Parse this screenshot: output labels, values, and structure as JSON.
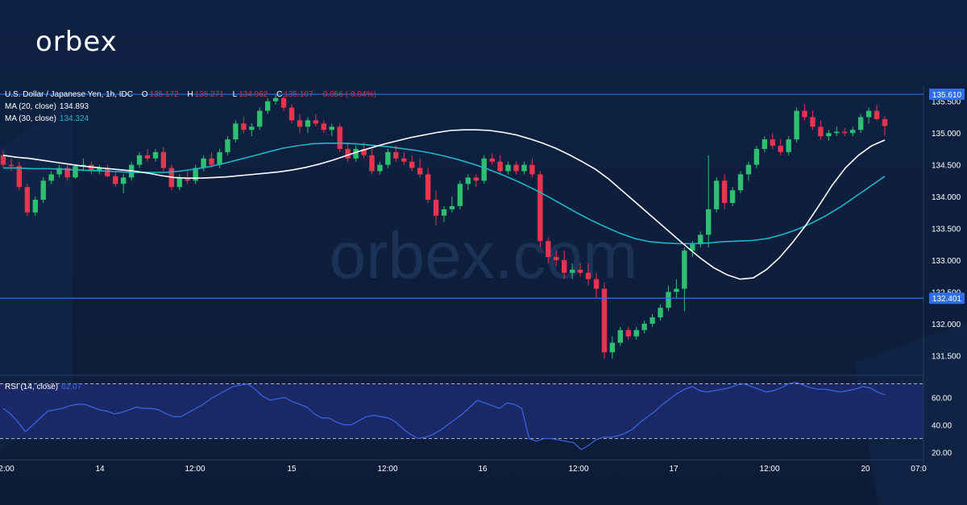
{
  "brand": "orbex",
  "watermark": "orbex.com",
  "colors": {
    "up": "#2fbf71",
    "down": "#e8344e",
    "ma20": "#ffffff",
    "ma30": "#1fb5c9",
    "level": "#2f6ef0",
    "rsi": "#3a66e6",
    "rsi_band": "#1d2a6e",
    "bg": "#0e1f3d"
  },
  "header": {
    "title": "U.S. Dollar / Japanese Yen, 1h, IDC",
    "o_label": "O",
    "o_value": "135.172",
    "h_label": "H",
    "h_value": "135.271",
    "l_label": "L",
    "l_value": "134.962",
    "c_label": "C",
    "c_value": "135.107",
    "change": "-0.056 (-0.04%)",
    "ma20_label": "MA (20, close)",
    "ma20_value": "134.893",
    "ma30_label": "MA (30, close)",
    "ma30_value": "134.324",
    "rsi_label": "RSI (14, close)",
    "rsi_value": "62.07"
  },
  "chart_data": [
    {
      "type": "candlestick",
      "currency": "JPY",
      "ylim": [
        131.2,
        135.75
      ],
      "y_ticks": [
        "135.500",
        "135.000",
        "134.500",
        "134.000",
        "133.500",
        "133.000",
        "132.500",
        "132.000",
        "131.500"
      ],
      "level_labels": [
        "135.610",
        "132.401"
      ],
      "levels": [
        135.61,
        132.401
      ],
      "x_ticks": [
        "2:00",
        "14",
        "12:00",
        "15",
        "12:00",
        "16",
        "12:00",
        "17",
        "12:00",
        "20",
        "07:0"
      ],
      "candles": [
        [
          134.65,
          134.72,
          134.45,
          134.5
        ],
        [
          134.5,
          134.6,
          134.4,
          134.48
        ],
        [
          134.48,
          134.55,
          134.1,
          134.15
        ],
        [
          134.15,
          134.2,
          133.7,
          133.75
        ],
        [
          133.75,
          134.0,
          133.7,
          133.95
        ],
        [
          133.95,
          134.3,
          133.9,
          134.25
        ],
        [
          134.25,
          134.4,
          134.2,
          134.35
        ],
        [
          134.35,
          134.5,
          134.3,
          134.45
        ],
        [
          134.45,
          134.5,
          134.25,
          134.3
        ],
        [
          134.3,
          134.5,
          134.28,
          134.48
        ],
        [
          134.48,
          134.6,
          134.4,
          134.5
        ],
        [
          134.5,
          134.55,
          134.35,
          134.4
        ],
        [
          134.4,
          134.5,
          134.35,
          134.45
        ],
        [
          134.45,
          134.5,
          134.3,
          134.32
        ],
        [
          134.32,
          134.4,
          134.15,
          134.2
        ],
        [
          134.2,
          134.35,
          134.05,
          134.3
        ],
        [
          134.3,
          134.55,
          134.25,
          134.5
        ],
        [
          134.5,
          134.7,
          134.45,
          134.65
        ],
        [
          134.65,
          134.75,
          134.55,
          134.6
        ],
        [
          134.6,
          134.75,
          134.55,
          134.7
        ],
        [
          134.7,
          134.78,
          134.4,
          134.45
        ],
        [
          134.45,
          134.5,
          134.1,
          134.15
        ],
        [
          134.15,
          134.35,
          134.1,
          134.3
        ],
        [
          134.3,
          134.4,
          134.2,
          134.25
        ],
        [
          134.25,
          134.5,
          134.2,
          134.45
        ],
        [
          134.45,
          134.65,
          134.4,
          134.6
        ],
        [
          134.6,
          134.7,
          134.45,
          134.5
        ],
        [
          134.5,
          134.75,
          134.45,
          134.7
        ],
        [
          134.7,
          134.95,
          134.65,
          134.9
        ],
        [
          134.9,
          135.2,
          134.85,
          135.15
        ],
        [
          135.15,
          135.25,
          135.0,
          135.05
        ],
        [
          135.05,
          135.15,
          134.95,
          135.1
        ],
        [
          135.1,
          135.4,
          135.05,
          135.35
        ],
        [
          135.35,
          135.55,
          135.3,
          135.5
        ],
        [
          135.5,
          135.6,
          135.45,
          135.55
        ],
        [
          135.55,
          135.58,
          135.35,
          135.4
        ],
        [
          135.4,
          135.45,
          135.15,
          135.2
        ],
        [
          135.2,
          135.3,
          135.0,
          135.1
        ],
        [
          135.1,
          135.25,
          135.0,
          135.2
        ],
        [
          135.2,
          135.3,
          135.1,
          135.15
        ],
        [
          135.15,
          135.2,
          135.0,
          135.05
        ],
        [
          135.05,
          135.15,
          134.95,
          135.1
        ],
        [
          135.1,
          135.15,
          134.7,
          134.75
        ],
        [
          134.75,
          134.85,
          134.55,
          134.6
        ],
        [
          134.6,
          134.8,
          134.55,
          134.75
        ],
        [
          134.75,
          134.85,
          134.6,
          134.65
        ],
        [
          134.65,
          134.75,
          134.35,
          134.4
        ],
        [
          134.4,
          134.55,
          134.35,
          134.5
        ],
        [
          134.5,
          134.75,
          134.45,
          134.7
        ],
        [
          134.7,
          134.8,
          134.55,
          134.6
        ],
        [
          134.6,
          134.7,
          134.5,
          134.55
        ],
        [
          134.55,
          134.65,
          134.4,
          134.45
        ],
        [
          134.45,
          134.6,
          134.3,
          134.35
        ],
        [
          134.35,
          134.45,
          133.9,
          133.95
        ],
        [
          133.95,
          134.1,
          133.55,
          133.7
        ],
        [
          133.7,
          133.85,
          133.6,
          133.8
        ],
        [
          133.8,
          134.0,
          133.75,
          133.85
        ],
        [
          133.85,
          134.25,
          133.8,
          134.2
        ],
        [
          134.2,
          134.35,
          134.1,
          134.3
        ],
        [
          134.3,
          134.35,
          134.15,
          134.25
        ],
        [
          134.25,
          134.65,
          134.2,
          134.6
        ],
        [
          134.6,
          134.68,
          134.5,
          134.55
        ],
        [
          134.55,
          134.65,
          134.35,
          134.4
        ],
        [
          134.4,
          134.55,
          134.35,
          134.5
        ],
        [
          134.5,
          134.55,
          134.35,
          134.4
        ],
        [
          134.4,
          134.55,
          134.35,
          134.5
        ],
        [
          134.5,
          134.6,
          134.3,
          134.35
        ],
        [
          134.35,
          134.4,
          133.2,
          133.3
        ],
        [
          133.3,
          133.35,
          132.95,
          133.05
        ],
        [
          133.05,
          133.15,
          132.9,
          133.0
        ],
        [
          133.0,
          133.15,
          132.7,
          132.8
        ],
        [
          132.8,
          132.95,
          132.7,
          132.85
        ],
        [
          132.85,
          132.95,
          132.75,
          132.8
        ],
        [
          132.8,
          132.95,
          132.6,
          132.7
        ],
        [
          132.7,
          132.8,
          132.4,
          132.55
        ],
        [
          132.55,
          132.65,
          131.45,
          131.55
        ],
        [
          131.55,
          131.8,
          131.45,
          131.7
        ],
        [
          131.7,
          131.95,
          131.65,
          131.9
        ],
        [
          131.9,
          131.95,
          131.75,
          131.8
        ],
        [
          131.8,
          131.95,
          131.75,
          131.9
        ],
        [
          131.9,
          132.05,
          131.85,
          132.0
        ],
        [
          132.0,
          132.15,
          131.95,
          132.1
        ],
        [
          132.1,
          132.3,
          132.05,
          132.25
        ],
        [
          132.25,
          132.6,
          132.2,
          132.5
        ],
        [
          132.5,
          132.7,
          132.4,
          132.55
        ],
        [
          132.55,
          133.2,
          132.2,
          133.15
        ],
        [
          133.15,
          133.3,
          133.05,
          133.25
        ],
        [
          133.25,
          133.45,
          133.2,
          133.4
        ],
        [
          133.4,
          134.65,
          133.2,
          133.8
        ],
        [
          133.8,
          134.3,
          133.75,
          134.25
        ],
        [
          134.25,
          134.35,
          133.8,
          133.9
        ],
        [
          133.9,
          134.15,
          133.85,
          134.1
        ],
        [
          134.1,
          134.4,
          134.05,
          134.35
        ],
        [
          134.35,
          134.55,
          134.25,
          134.5
        ],
        [
          134.5,
          134.8,
          134.45,
          134.75
        ],
        [
          134.75,
          134.95,
          134.7,
          134.9
        ],
        [
          134.9,
          135.0,
          134.75,
          134.8
        ],
        [
          134.8,
          134.9,
          134.65,
          134.7
        ],
        [
          134.7,
          134.95,
          134.65,
          134.9
        ],
        [
          134.9,
          135.4,
          134.85,
          135.35
        ],
        [
          135.35,
          135.45,
          135.2,
          135.25
        ],
        [
          135.25,
          135.35,
          135.05,
          135.1
        ],
        [
          135.1,
          135.2,
          134.9,
          134.95
        ],
        [
          134.95,
          135.05,
          134.88,
          135.0
        ],
        [
          135.0,
          135.1,
          134.95,
          135.02
        ],
        [
          135.02,
          135.08,
          134.95,
          135.0
        ],
        [
          135.0,
          135.1,
          134.95,
          135.05
        ],
        [
          135.05,
          135.3,
          135.0,
          135.25
        ],
        [
          135.25,
          135.4,
          135.15,
          135.35
        ],
        [
          135.35,
          135.45,
          135.2,
          135.22
        ],
        [
          135.22,
          135.27,
          134.96,
          135.11
        ]
      ],
      "ma20": [
        134.65,
        134.62,
        134.6,
        134.57,
        134.54,
        134.51,
        134.48,
        134.46,
        134.44,
        134.42,
        134.4,
        134.37,
        134.33,
        134.3,
        134.29,
        134.29,
        134.3,
        134.31,
        134.33,
        134.35,
        134.37,
        134.39,
        134.42,
        134.46,
        134.51,
        134.57,
        134.64,
        134.71,
        134.77,
        134.83,
        134.88,
        134.93,
        134.97,
        135.01,
        135.04,
        135.05,
        135.05,
        135.04,
        135.01,
        134.97,
        134.91,
        134.84,
        134.76,
        134.66,
        134.55,
        134.43,
        134.28,
        134.1,
        133.92,
        133.74,
        133.56,
        133.38,
        133.2,
        133.03,
        132.88,
        132.77,
        132.7,
        132.72,
        132.85,
        133.04,
        133.28,
        133.55,
        133.86,
        134.18,
        134.45,
        134.65,
        134.8,
        134.89
      ],
      "ma30": [
        134.45,
        134.45,
        134.44,
        134.44,
        134.43,
        134.42,
        134.41,
        134.4,
        134.39,
        134.38,
        134.38,
        134.38,
        134.4,
        134.43,
        134.47,
        134.52,
        134.58,
        134.64,
        134.7,
        134.76,
        134.8,
        134.83,
        134.84,
        134.84,
        134.83,
        134.81,
        134.79,
        134.76,
        134.73,
        134.69,
        134.64,
        134.58,
        134.51,
        134.43,
        134.34,
        134.24,
        134.13,
        134.01,
        133.88,
        133.75,
        133.63,
        133.52,
        133.42,
        133.34,
        133.29,
        133.27,
        133.26,
        133.26,
        133.27,
        133.29,
        133.3,
        133.31,
        133.34,
        133.4,
        133.48,
        133.58,
        133.7,
        133.84,
        134.0,
        134.16,
        134.32
      ]
    },
    {
      "type": "line",
      "name": "RSI (14, close)",
      "ylim": [
        15,
        75
      ],
      "y_ticks": [
        "60.00",
        "40.00",
        "20.00"
      ],
      "bands": [
        70,
        30
      ],
      "values": [
        52,
        48,
        42,
        35,
        40,
        45,
        50,
        51,
        52,
        54,
        55,
        55,
        53,
        51,
        50,
        48,
        49,
        51,
        53,
        52,
        52,
        51,
        48,
        46,
        46,
        49,
        52,
        55,
        59,
        62,
        65,
        68,
        69,
        70,
        66,
        61,
        58,
        59,
        60,
        57,
        55,
        53,
        48,
        45,
        45,
        42,
        40,
        40,
        43,
        46,
        47,
        46,
        45,
        42,
        37,
        33,
        30,
        31,
        33,
        36,
        40,
        44,
        48,
        53,
        58,
        56,
        54,
        52,
        56,
        55,
        52,
        30,
        28,
        30,
        30,
        29,
        28,
        27,
        22,
        25,
        29,
        31,
        31,
        32,
        34,
        37,
        42,
        46,
        50,
        55,
        59,
        63,
        66,
        68,
        65,
        64,
        65,
        66,
        67,
        69,
        70,
        68,
        66,
        64,
        65,
        67,
        70,
        71,
        69,
        67,
        66,
        66,
        65,
        64,
        65,
        66,
        68,
        67,
        64,
        62
      ]
    }
  ]
}
